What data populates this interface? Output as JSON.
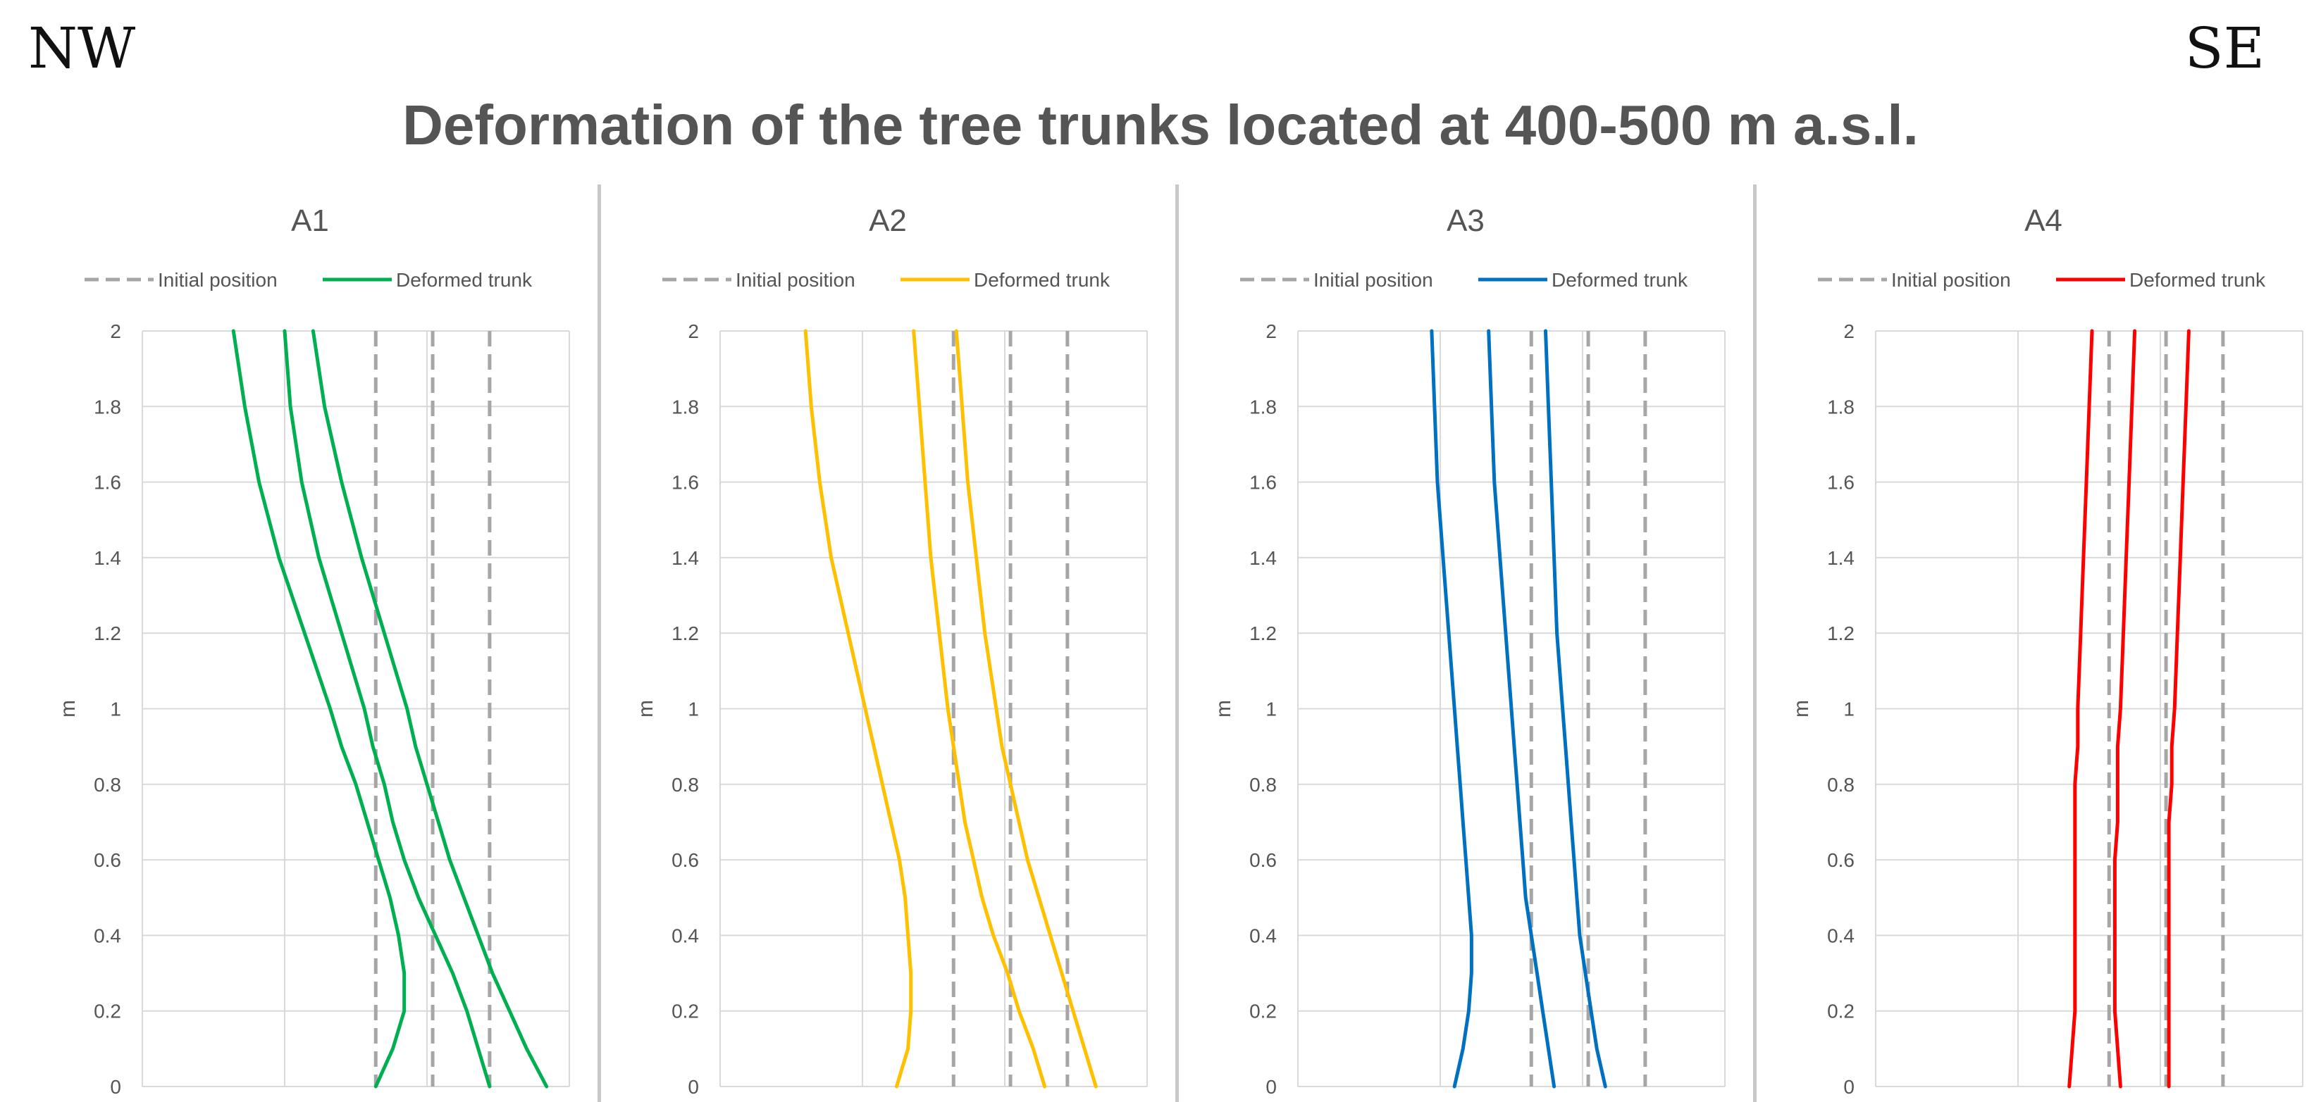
{
  "header": {
    "left_label": "NW",
    "right_label": "SE"
  },
  "title": "Deformation of the tree trunks located at 400-500 m a.s.l.",
  "legend": {
    "initial": "Initial position",
    "deformed": "Deformed trunk"
  },
  "chart_data": [
    {
      "type": "line",
      "title": "A1",
      "ylabel": "m",
      "ylim": [
        0,
        2
      ],
      "yticks": [
        "0",
        "0.2",
        "0.4",
        "0.6",
        "0.8",
        "1",
        "1.2",
        "1.4",
        "1.6",
        "1.8",
        "2"
      ],
      "color": "#00b050",
      "initial_x": [
        0.32,
        0.52,
        0.72
      ],
      "series": [
        {
          "y": [
            0,
            0.1,
            0.2,
            0.3,
            0.4,
            0.5,
            0.6,
            0.7,
            0.8,
            0.9,
            1.0,
            1.2,
            1.4,
            1.6,
            1.8,
            2.0
          ],
          "x": [
            0.32,
            0.38,
            0.42,
            0.42,
            0.4,
            0.37,
            0.33,
            0.29,
            0.25,
            0.2,
            0.16,
            0.07,
            -0.02,
            -0.09,
            -0.14,
            -0.18
          ]
        },
        {
          "y": [
            0,
            0.1,
            0.2,
            0.3,
            0.4,
            0.5,
            0.6,
            0.7,
            0.8,
            0.9,
            1.0,
            1.2,
            1.4,
            1.6,
            1.8,
            2.0
          ],
          "x": [
            0.72,
            0.68,
            0.64,
            0.59,
            0.53,
            0.47,
            0.42,
            0.38,
            0.35,
            0.31,
            0.28,
            0.2,
            0.12,
            0.06,
            0.02,
            0.0
          ]
        },
        {
          "y": [
            0,
            0.1,
            0.2,
            0.3,
            0.4,
            0.5,
            0.6,
            0.7,
            0.8,
            0.9,
            1.0,
            1.2,
            1.4,
            1.6,
            1.8,
            2.0
          ],
          "x": [
            0.92,
            0.85,
            0.79,
            0.73,
            0.68,
            0.63,
            0.58,
            0.54,
            0.5,
            0.46,
            0.43,
            0.35,
            0.27,
            0.2,
            0.14,
            0.1
          ]
        }
      ]
    },
    {
      "type": "line",
      "title": "A2",
      "ylabel": "m",
      "ylim": [
        0,
        2
      ],
      "yticks": [
        "0",
        "0.2",
        "0.4",
        "0.6",
        "0.8",
        "1",
        "1.2",
        "1.4",
        "1.6",
        "1.8",
        "2"
      ],
      "color": "#ffc000",
      "initial_x": [
        0.32,
        0.52,
        0.72
      ],
      "series": [
        {
          "y": [
            0,
            0.1,
            0.2,
            0.3,
            0.4,
            0.5,
            0.6,
            0.7,
            0.8,
            0.9,
            1.0,
            1.2,
            1.4,
            1.6,
            1.8,
            2.0
          ],
          "x": [
            0.12,
            0.16,
            0.17,
            0.17,
            0.16,
            0.15,
            0.13,
            0.1,
            0.07,
            0.04,
            0.01,
            -0.05,
            -0.11,
            -0.15,
            -0.18,
            -0.2
          ]
        },
        {
          "y": [
            0,
            0.1,
            0.2,
            0.3,
            0.4,
            0.5,
            0.6,
            0.7,
            0.8,
            0.9,
            1.0,
            1.2,
            1.4,
            1.6,
            1.8,
            2.0
          ],
          "x": [
            0.64,
            0.6,
            0.55,
            0.51,
            0.46,
            0.42,
            0.39,
            0.36,
            0.34,
            0.32,
            0.3,
            0.27,
            0.24,
            0.22,
            0.2,
            0.18
          ]
        },
        {
          "y": [
            0,
            0.1,
            0.2,
            0.3,
            0.4,
            0.5,
            0.6,
            0.7,
            0.8,
            0.9,
            1.0,
            1.2,
            1.4,
            1.6,
            1.8,
            2.0
          ],
          "x": [
            0.82,
            0.78,
            0.74,
            0.7,
            0.66,
            0.62,
            0.58,
            0.55,
            0.52,
            0.49,
            0.47,
            0.43,
            0.4,
            0.37,
            0.35,
            0.33
          ]
        }
      ]
    },
    {
      "type": "line",
      "title": "A3",
      "ylabel": "m",
      "ylim": [
        0,
        2
      ],
      "yticks": [
        "0",
        "0.2",
        "0.4",
        "0.6",
        "0.8",
        "1",
        "1.2",
        "1.4",
        "1.6",
        "1.8",
        "2"
      ],
      "color": "#0070c0",
      "initial_x": [
        0.32,
        0.52,
        0.72
      ],
      "series": [
        {
          "y": [
            0,
            0.1,
            0.2,
            0.3,
            0.4,
            0.5,
            0.6,
            0.7,
            0.8,
            0.9,
            1.0,
            1.2,
            1.4,
            1.6,
            1.8,
            2.0
          ],
          "x": [
            0.05,
            0.08,
            0.1,
            0.11,
            0.11,
            0.1,
            0.09,
            0.08,
            0.07,
            0.06,
            0.05,
            0.03,
            0.01,
            -0.01,
            -0.02,
            -0.03
          ]
        },
        {
          "y": [
            0,
            0.1,
            0.2,
            0.3,
            0.4,
            0.5,
            0.6,
            0.7,
            0.8,
            0.9,
            1.0,
            1.2,
            1.4,
            1.6,
            1.8,
            2.0
          ],
          "x": [
            0.4,
            0.38,
            0.36,
            0.34,
            0.32,
            0.3,
            0.29,
            0.28,
            0.27,
            0.26,
            0.25,
            0.23,
            0.21,
            0.19,
            0.18,
            0.17
          ]
        },
        {
          "y": [
            0,
            0.1,
            0.2,
            0.3,
            0.4,
            0.5,
            0.6,
            0.7,
            0.8,
            0.9,
            1.0,
            1.2,
            1.4,
            1.6,
            1.8,
            2.0
          ],
          "x": [
            0.58,
            0.55,
            0.53,
            0.51,
            0.49,
            0.48,
            0.47,
            0.46,
            0.45,
            0.44,
            0.43,
            0.41,
            0.4,
            0.39,
            0.38,
            0.37
          ]
        }
      ]
    },
    {
      "type": "line",
      "title": "A4",
      "ylabel": "m",
      "ylim": [
        0,
        2
      ],
      "yticks": [
        "0",
        "0.2",
        "0.4",
        "0.6",
        "0.8",
        "1",
        "1.2",
        "1.4",
        "1.6",
        "1.8",
        "2"
      ],
      "color": "#ff0000",
      "initial_x": [
        0.32,
        0.52,
        0.72
      ],
      "series": [
        {
          "y": [
            0,
            0.1,
            0.2,
            0.3,
            0.4,
            0.5,
            0.6,
            0.7,
            0.8,
            0.9,
            1.0,
            1.2,
            1.4,
            1.6,
            1.8,
            2.0
          ],
          "x": [
            0.18,
            0.19,
            0.2,
            0.2,
            0.2,
            0.2,
            0.2,
            0.2,
            0.2,
            0.21,
            0.21,
            0.22,
            0.23,
            0.24,
            0.25,
            0.26
          ]
        },
        {
          "y": [
            0,
            0.1,
            0.2,
            0.3,
            0.4,
            0.5,
            0.6,
            0.7,
            0.8,
            0.9,
            1.0,
            1.2,
            1.4,
            1.6,
            1.8,
            2.0
          ],
          "x": [
            0.36,
            0.35,
            0.34,
            0.34,
            0.34,
            0.34,
            0.34,
            0.35,
            0.35,
            0.35,
            0.36,
            0.37,
            0.38,
            0.39,
            0.4,
            0.41
          ]
        },
        {
          "y": [
            0,
            0.1,
            0.2,
            0.3,
            0.4,
            0.5,
            0.6,
            0.7,
            0.8,
            0.9,
            1.0,
            1.2,
            1.4,
            1.6,
            1.8,
            2.0
          ],
          "x": [
            0.53,
            0.53,
            0.53,
            0.53,
            0.53,
            0.53,
            0.53,
            0.53,
            0.54,
            0.54,
            0.55,
            0.56,
            0.57,
            0.58,
            0.59,
            0.6
          ]
        }
      ]
    }
  ]
}
